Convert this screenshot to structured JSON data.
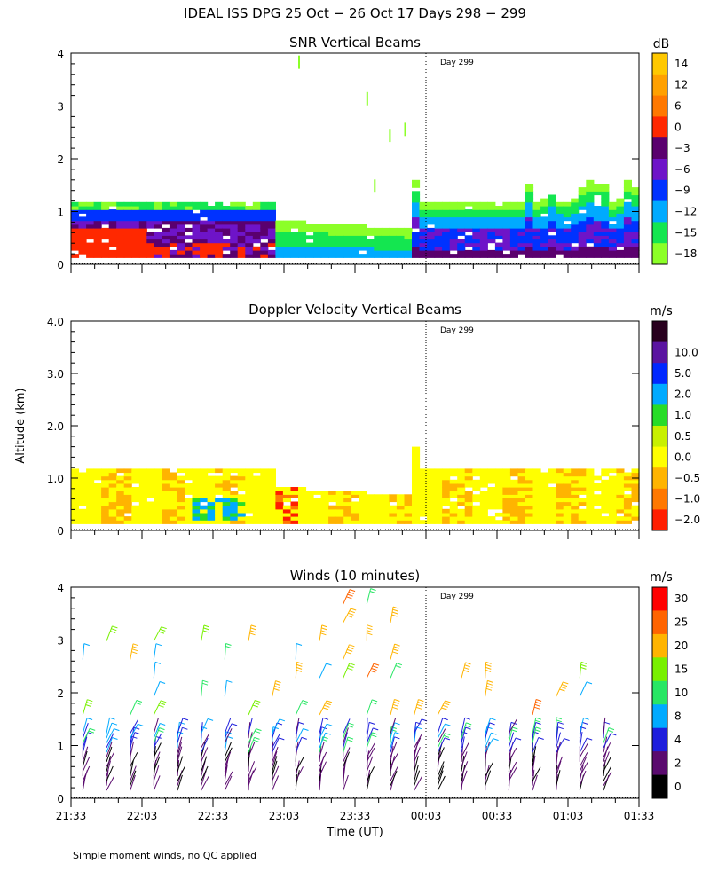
{
  "figure": {
    "title": "IDEAL ISS DPG  25 Oct − 26 Oct 17 Days 298 − 299",
    "ylabel": "Altitude (km)",
    "xlabel": "Time (UT)",
    "footnote": "Simple moment winds, no QC applied",
    "day_marker_label": "Day 299",
    "day_marker_time": "00:00"
  },
  "chart_data": [
    {
      "type": "heatmap",
      "title": "SNR Vertical Beams",
      "units": "dB",
      "ylim": [
        0,
        4
      ],
      "yticks": [
        "0",
        "1",
        "2",
        "3",
        "4"
      ],
      "xlim": [
        "21:33",
        "01:33"
      ],
      "colorbar_labels": [
        "14",
        "12",
        "6",
        "0",
        "−3",
        "−6",
        "−9",
        "−12",
        "−15",
        "−18"
      ],
      "colors": [
        "#ffc800",
        "#ffa000",
        "#ff7800",
        "#ff2800",
        "#5a006e",
        "#6e14c8",
        "#0032ff",
        "#00aaff",
        "#14e650",
        "#8cff28"
      ]
    },
    {
      "type": "heatmap",
      "title": "Doppler Velocity Vertical Beams",
      "units": "m/s",
      "ylim": [
        0,
        4
      ],
      "yticks": [
        "0",
        "1.0",
        "2.0",
        "3.0",
        "4.0"
      ],
      "xlim": [
        "21:33",
        "01:33"
      ],
      "colorbar_labels": [
        "10.0",
        "5.0",
        "2.0",
        "1.0",
        "0.5",
        "0.0",
        "−0.5",
        "−1.0",
        "−2.0"
      ],
      "colors": [
        "#28001e",
        "#5a14a0",
        "#0028ff",
        "#00aaff",
        "#28dc28",
        "#c8f000",
        "#ffff00",
        "#ffb400",
        "#ff7800",
        "#ff1e00"
      ]
    },
    {
      "type": "line",
      "title": "Winds (10 minutes)",
      "units": "m/s",
      "ylim": [
        0,
        4
      ],
      "yticks": [
        "0",
        "1",
        "2",
        "3",
        "4"
      ],
      "xticks": [
        "21:33",
        "22:03",
        "22:33",
        "23:03",
        "23:33",
        "00:03",
        "00:33",
        "01:03",
        "01:33"
      ],
      "colorbar_labels": [
        "30",
        "25",
        "20",
        "15",
        "10",
        "8",
        "4",
        "2",
        "0"
      ],
      "colors": [
        "#ff0000",
        "#ff6400",
        "#ffb400",
        "#78f000",
        "#28e664",
        "#00aaff",
        "#1e1edc",
        "#5a0a6e",
        "#000000"
      ]
    }
  ]
}
